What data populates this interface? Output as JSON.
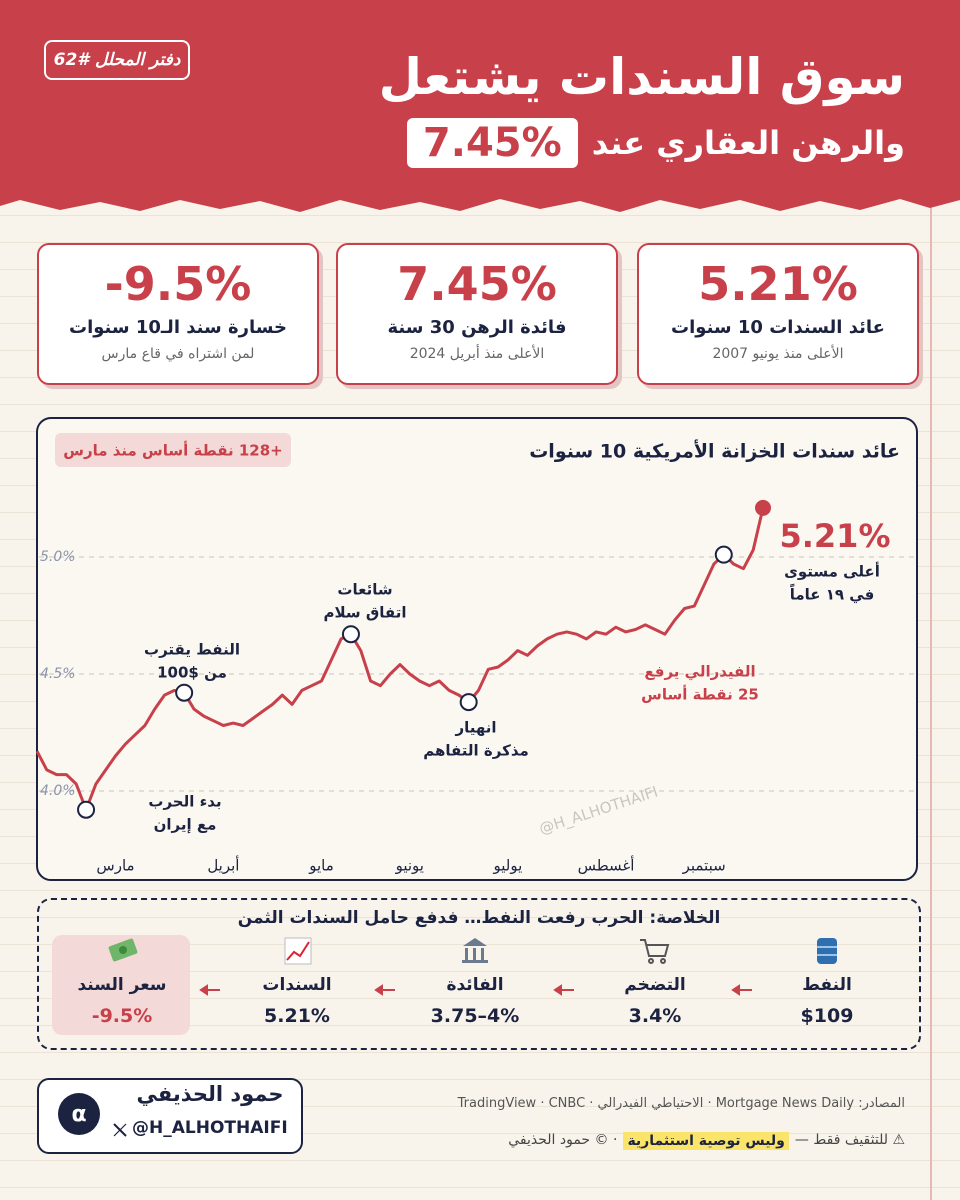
{
  "header": {
    "tag": "دفتر المحلل #62",
    "title": "سوق السندات يشتعل",
    "subtitle": "والرهن العقاري عند",
    "highlight": "7.45%"
  },
  "kpis": [
    {
      "value": "5.21%",
      "label": "عائد السندات 10 سنوات",
      "note": "الأعلى منذ يونيو 2007"
    },
    {
      "value": "7.45%",
      "label": "فائدة الرهن 30 سنة",
      "note": "الأعلى منذ أبريل 2024"
    },
    {
      "value": "-9.5%",
      "label": "خسارة سند الـ10 سنوات",
      "note": "لمن اشتراه في قاع مارس"
    }
  ],
  "chart_data": {
    "type": "line",
    "title": "عائد سندات الخزانة الأمريكية 10 سنوات",
    "badge": "+128 نقطة أساس منذ مارس",
    "watermark": "@H_ALHOTHAIFI",
    "color": "#c8404a",
    "categories": [
      null,
      null,
      null,
      null,
      null,
      null,
      null,
      null,
      "مارس",
      null,
      null,
      null,
      null,
      null,
      null,
      null,
      null,
      null,
      null,
      "أبريل",
      null,
      null,
      null,
      null,
      null,
      null,
      null,
      null,
      null,
      "مايو",
      null,
      null,
      null,
      null,
      null,
      null,
      null,
      null,
      "يونيو",
      null,
      null,
      null,
      null,
      null,
      null,
      null,
      null,
      null,
      "يوليو",
      null,
      null,
      null,
      null,
      null,
      null,
      null,
      null,
      null,
      "أغسطس",
      null,
      null,
      null,
      null,
      null,
      null,
      null,
      null,
      null,
      "سبتمبر",
      null,
      null,
      null,
      null,
      null,
      null
    ],
    "values": [
      4.17,
      4.09,
      4.07,
      4.07,
      4.03,
      3.92,
      4.03,
      4.09,
      4.15,
      4.2,
      4.24,
      4.28,
      4.35,
      4.41,
      4.43,
      4.42,
      4.35,
      4.32,
      4.3,
      4.28,
      4.29,
      4.28,
      4.31,
      4.34,
      4.37,
      4.41,
      4.37,
      4.43,
      4.45,
      4.47,
      4.56,
      4.65,
      4.67,
      4.6,
      4.47,
      4.45,
      4.5,
      4.54,
      4.5,
      4.47,
      4.45,
      4.47,
      4.43,
      4.41,
      4.38,
      4.43,
      4.52,
      4.53,
      4.56,
      4.6,
      4.58,
      4.62,
      4.65,
      4.67,
      4.68,
      4.67,
      4.65,
      4.68,
      4.67,
      4.7,
      4.68,
      4.69,
      4.71,
      4.69,
      4.67,
      4.73,
      4.78,
      4.79,
      4.88,
      4.97,
      5.01,
      4.97,
      4.95,
      5.03,
      5.21
    ],
    "value_labels": [
      null,
      null,
      null,
      null,
      null,
      null,
      null,
      null,
      null,
      null,
      null,
      null,
      null,
      null,
      null,
      null,
      null,
      null,
      null,
      null,
      null,
      null,
      null,
      null,
      null,
      null,
      null,
      null,
      null,
      null,
      null,
      null,
      null,
      null,
      null,
      null,
      null,
      null,
      null,
      null,
      null,
      null,
      null,
      null,
      null,
      null,
      null,
      null,
      null,
      null,
      null,
      null,
      null,
      null,
      null,
      null,
      null,
      null,
      null,
      null,
      null,
      null,
      null,
      null,
      null,
      null,
      null,
      null,
      null,
      null,
      null,
      null,
      null,
      null,
      "5.21%"
    ],
    "annotations": [
      [
        "بدء الحرب",
        "مع إيران"
      ],
      [
        "النفط يقترب",
        "من $100"
      ],
      [
        "شائعات",
        "اتفاق سلام"
      ],
      [
        "انهيار",
        "مذكرة التفاهم"
      ],
      [
        "الفيدرالي يرفع",
        "25 نقطة أساس"
      ],
      [
        "أعلى مستوى",
        "في ١٩ عاماً"
      ]
    ],
    "ylim": [
      3.75,
      5.4
    ],
    "yticks": [
      {
        "value": 4.0,
        "label": "4.0%"
      },
      {
        "value": 4.5,
        "label": "4.5%"
      },
      {
        "value": 5.0,
        "label": "5.0%"
      }
    ],
    "grid": true
  },
  "summary": {
    "title": "الخلاصة: الحرب رفعت النفط… فدفع حامل السندات الثمن",
    "steps": [
      {
        "label": "النفط",
        "value": "$109"
      },
      {
        "label": "التضخم",
        "value": "3.4%"
      },
      {
        "label": "الفائدة",
        "value": "3.75–4%"
      },
      {
        "label": "السندات",
        "value": "5.21%"
      },
      {
        "label": "سعر السند",
        "value": "-9.5%"
      }
    ]
  },
  "footer": {
    "author": "حمود الحذيفي",
    "handle": "@H_ALHOTHAIFI",
    "logo": "α",
    "sources": "المصادر: Mortgage News Daily · الاحتياطي الفيدرالي · TradingView · CNBC",
    "disclaimer": [
      "⚠ للتثقيف فقط —",
      "وليس توصية استثمارية",
      "· © حمود الحذيفي"
    ]
  }
}
